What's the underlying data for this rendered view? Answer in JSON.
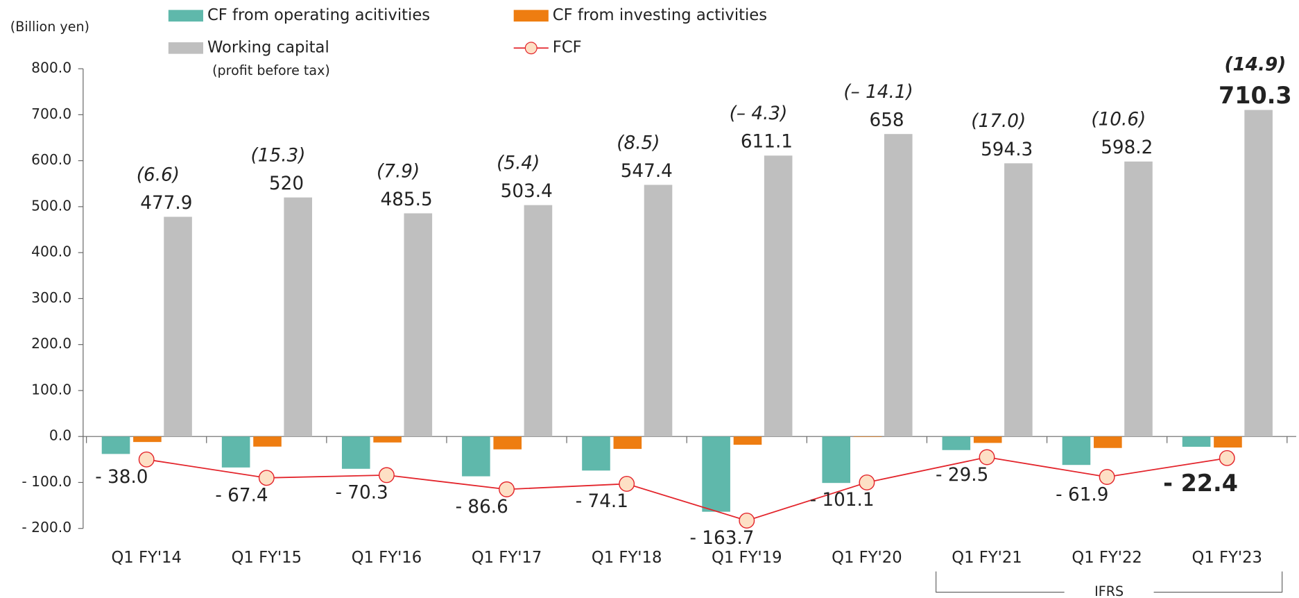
{
  "chart_data": {
    "type": "bar",
    "y_label": "(Billion yen)",
    "bracket_label": "IFRS",
    "categories": [
      "Q1 FY'14",
      "Q1 FY'15",
      "Q1 FY'16",
      "Q1 FY'17",
      "Q1 FY'18",
      "Q1 FY'19",
      "Q1 FY'20",
      "Q1 FY'21",
      "Q1 FY'22",
      "Q1 FY'23"
    ],
    "series": [
      {
        "name": "CF from operating acitivities",
        "color": "#5fb8ab",
        "values": [
          -38.0,
          -67.4,
          -70.3,
          -86.6,
          -74.1,
          -163.7,
          -101.1,
          -29.5,
          -61.9,
          -22.4
        ],
        "value_labels": [
          "- 38.0",
          "- 67.4",
          "- 70.3",
          "- 86.6",
          "- 74.1",
          "- 163.7",
          "- 101.1",
          "- 29.5",
          "- 61.9",
          "- 22.4"
        ]
      },
      {
        "name": "CF from investing activities",
        "color": "#ee7d11",
        "values": [
          -12,
          -22,
          -13,
          -28,
          -27,
          -18,
          -1,
          -14,
          -25,
          -24
        ]
      },
      {
        "name": "Working capital",
        "subtitle": "(profit before tax)",
        "color": "#bfbfbf",
        "values": [
          477.9,
          520.0,
          485.5,
          503.4,
          547.4,
          611.1,
          658.0,
          594.3,
          598.2,
          710.3
        ],
        "annotations": [
          "(6.6)",
          "(15.3)",
          "(7.9)",
          "(5.4)",
          "(8.5)",
          "(– 4.3)",
          "(– 14.1)",
          "(17.0)",
          "(10.6)",
          "(14.9)"
        ]
      },
      {
        "name": "FCF",
        "type": "line",
        "color": "#e3242b",
        "marker_fill": "#fde0c5",
        "values": [
          -50,
          -90,
          -84,
          -115,
          -103,
          -183,
          -100,
          -45,
          -88,
          -47
        ]
      }
    ],
    "ylim": [
      -200,
      800
    ],
    "yticks": [
      {
        "value": -200,
        "label": "- 200.0"
      },
      {
        "value": -100,
        "label": "- 100.0"
      },
      {
        "value": 0,
        "label": "0.0"
      },
      {
        "value": 100,
        "label": "100.0"
      },
      {
        "value": 200,
        "label": "200.0"
      },
      {
        "value": 300,
        "label": "300.0"
      },
      {
        "value": 400,
        "label": "400.0"
      },
      {
        "value": 500,
        "label": "500.0"
      },
      {
        "value": 600,
        "label": "600.0"
      },
      {
        "value": 700,
        "label": "700.0"
      },
      {
        "value": 800,
        "label": "800.0"
      }
    ]
  }
}
